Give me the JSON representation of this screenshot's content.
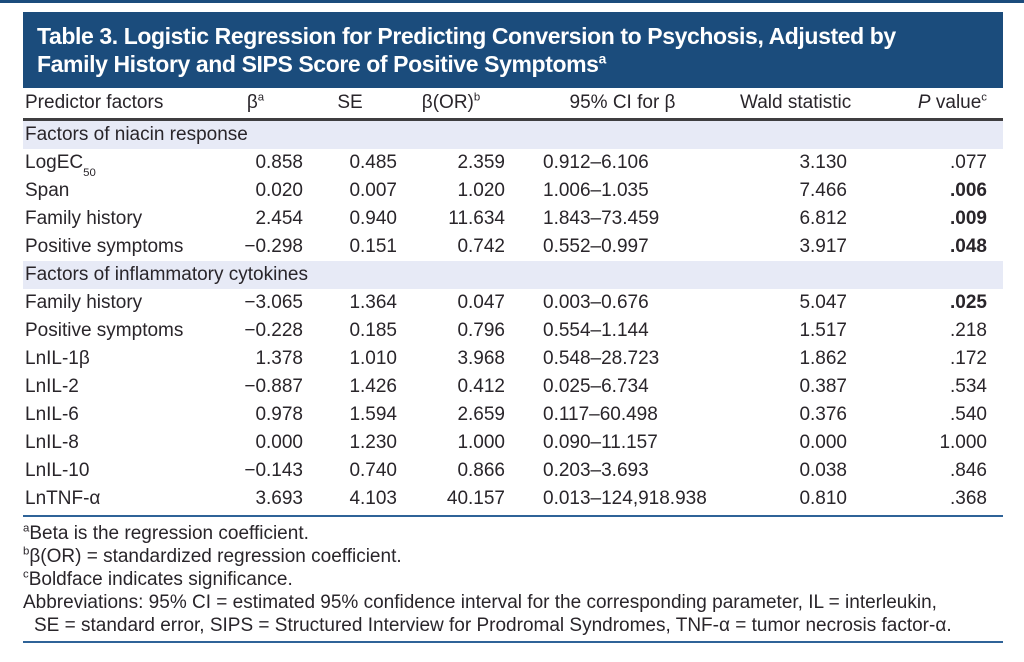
{
  "colors": {
    "navy": "#1b4c7c",
    "title_text": "#ffffff",
    "band": "#e7eaf6",
    "rule_dark": "#3f3e40",
    "rule_blue": "#2f6398",
    "text": "#29252a"
  },
  "title": {
    "line1": "Table 3. Logistic Regression for Predicting Conversion to Psychosis, Adjusted by",
    "line2": "Family History and SIPS Score of Positive Symptoms",
    "sup": "a"
  },
  "table": {
    "columns": [
      {
        "key": "predictor",
        "italic": "",
        "text": "Predictor factors",
        "sup": ""
      },
      {
        "key": "beta",
        "italic": "",
        "text": "β",
        "sup": "a"
      },
      {
        "key": "se",
        "italic": "",
        "text": "SE",
        "sup": ""
      },
      {
        "key": "beta-or",
        "italic": "",
        "text": "β(OR)",
        "sup": "b"
      },
      {
        "key": "ci",
        "italic": "",
        "text": "95% CI for β",
        "sup": ""
      },
      {
        "key": "wald",
        "italic": "",
        "text": "Wald statistic",
        "sup": ""
      },
      {
        "key": "p-value",
        "italic": "P",
        "text": " value",
        "sup": "c"
      }
    ],
    "sections": [
      {
        "header": "Factors of niacin response",
        "rows": [
          {
            "predictor": "LogEC",
            "predictor_sub": "50",
            "beta": "0.858",
            "se": "0.485",
            "or": "2.359",
            "ci": "0.912–6.106",
            "wald": "3.130",
            "p": ".077",
            "p_bold": false
          },
          {
            "predictor": "Span",
            "predictor_sub": "",
            "beta": "0.020",
            "se": "0.007",
            "or": "1.020",
            "ci": "1.006–1.035",
            "wald": "7.466",
            "p": ".006",
            "p_bold": true
          },
          {
            "predictor": "Family history",
            "predictor_sub": "",
            "beta": "2.454",
            "se": "0.940",
            "or": "11.634",
            "ci": "1.843–73.459",
            "wald": "6.812",
            "p": ".009",
            "p_bold": true
          },
          {
            "predictor": "Positive symptoms",
            "predictor_sub": "",
            "beta": "−0.298",
            "se": "0.151",
            "or": "0.742",
            "ci": "0.552–0.997",
            "wald": "3.917",
            "p": ".048",
            "p_bold": true
          }
        ]
      },
      {
        "header": "Factors of inflammatory cytokines",
        "rows": [
          {
            "predictor": "Family history",
            "predictor_sub": "",
            "beta": "−3.065",
            "se": "1.364",
            "or": "0.047",
            "ci": "0.003–0.676",
            "wald": "5.047",
            "p": ".025",
            "p_bold": true
          },
          {
            "predictor": "Positive symptoms",
            "predictor_sub": "",
            "beta": "−0.228",
            "se": "0.185",
            "or": "0.796",
            "ci": "0.554–1.144",
            "wald": "1.517",
            "p": ".218",
            "p_bold": false
          },
          {
            "predictor": "LnIL-1β",
            "predictor_sub": "",
            "beta": "1.378",
            "se": "1.010",
            "or": "3.968",
            "ci": "0.548–28.723",
            "wald": "1.862",
            "p": ".172",
            "p_bold": false
          },
          {
            "predictor": "LnIL-2",
            "predictor_sub": "",
            "beta": "−0.887",
            "se": "1.426",
            "or": "0.412",
            "ci": "0.025–6.734",
            "wald": "0.387",
            "p": ".534",
            "p_bold": false
          },
          {
            "predictor": "LnIL-6",
            "predictor_sub": "",
            "beta": "0.978",
            "se": "1.594",
            "or": "2.659",
            "ci": "0.117–60.498",
            "wald": "0.376",
            "p": ".540",
            "p_bold": false
          },
          {
            "predictor": "LnIL-8",
            "predictor_sub": "",
            "beta": "0.000",
            "se": "1.230",
            "or": "1.000",
            "ci": "0.090–11.157",
            "wald": "0.000",
            "p": "1.000",
            "p_bold": false
          },
          {
            "predictor": "LnIL-10",
            "predictor_sub": "",
            "beta": "−0.143",
            "se": "0.740",
            "or": "0.866",
            "ci": "0.203–3.693",
            "wald": "0.038",
            "p": ".846",
            "p_bold": false
          },
          {
            "predictor": "LnTNF-α",
            "predictor_sub": "",
            "beta": "3.693",
            "se": "4.103",
            "or": "40.157",
            "ci": "0.013–124,918.938",
            "wald": "0.810",
            "p": ".368",
            "p_bold": false
          }
        ]
      }
    ]
  },
  "footnotes": [
    {
      "sup": "a",
      "text": "Beta is the regression coefficient.",
      "indent": false
    },
    {
      "sup": "b",
      "text": "β(OR) = standardized regression coefficient.",
      "indent": false
    },
    {
      "sup": "c",
      "text": "Boldface indicates significance.",
      "indent": false
    },
    {
      "sup": "",
      "text": "Abbreviations: 95% CI = estimated 95% confidence interval for the corresponding parameter, IL = interleukin,",
      "indent": false
    },
    {
      "sup": "",
      "text": "SE = standard error, SIPS = Structured Interview for Prodromal Syndromes, TNF-α = tumor necrosis factor-α.",
      "indent": true
    }
  ]
}
